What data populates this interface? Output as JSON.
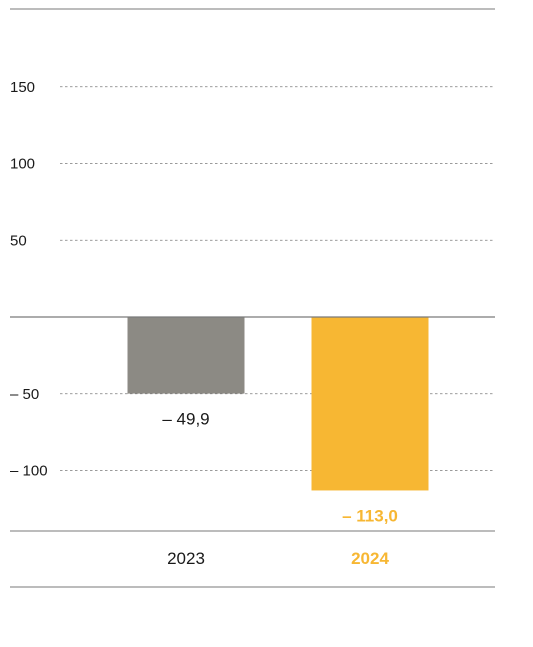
{
  "chart_data": {
    "type": "bar",
    "categories": [
      "2023",
      "2024"
    ],
    "values": [
      -49.9,
      -113.0
    ],
    "value_labels": [
      "– 49,9",
      "– 113,0"
    ],
    "highlight": [
      false,
      true
    ],
    "title": "",
    "xlabel": "",
    "ylabel": "",
    "ylim": [
      -140,
      200
    ],
    "yticks": [
      150,
      100,
      50,
      -50,
      -100
    ],
    "ytick_labels": [
      "150",
      "100",
      "50",
      "– 50",
      "– 100"
    ],
    "grid": true,
    "legend": "none",
    "colors": {
      "bar_default": "#8c8a84",
      "bar_highlight": "#f7b733",
      "axis_line": "#7a7a7a",
      "grid": "#7a7a7a",
      "text": "#1a1a1a"
    }
  }
}
